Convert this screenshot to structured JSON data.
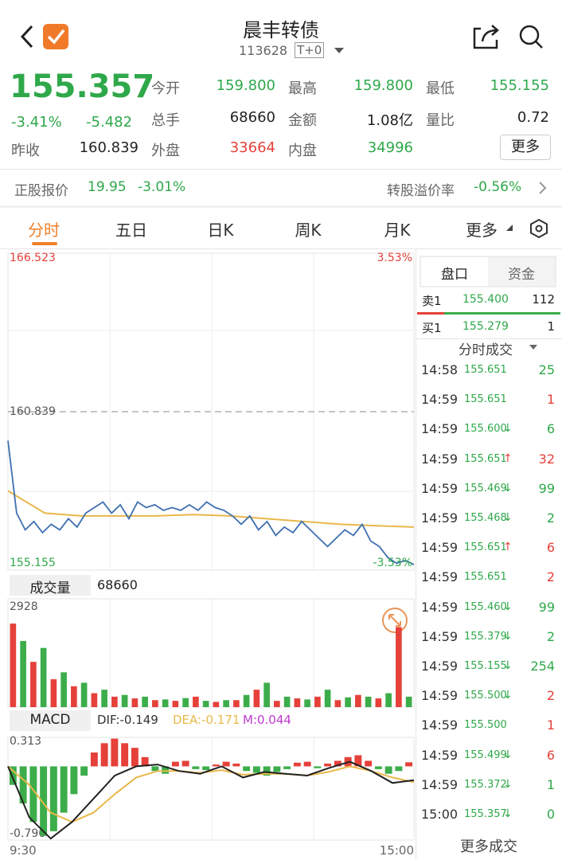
{
  "header": {
    "title": "晨丰转债",
    "code": "113628",
    "tag": "T+0"
  },
  "quote": {
    "price": "155.357",
    "change_pct": "-3.41%",
    "change": "-5.482",
    "prev_close_label": "昨收",
    "prev_close": "160.839",
    "cells": [
      [
        {
          "label": "今开",
          "value": "159.800",
          "color": "#2fa84a"
        },
        {
          "label": "最高",
          "value": "159.800",
          "color": "#2fa84a"
        },
        {
          "label": "最低",
          "value": "155.155",
          "color": "#2fa84a"
        }
      ],
      [
        {
          "label": "总手",
          "value": "68660",
          "color": "#222222"
        },
        {
          "label": "金额",
          "value": "1.08亿",
          "color": "#222222"
        },
        {
          "label": "量比",
          "value": "0.72",
          "color": "#222222"
        }
      ],
      [
        {
          "label": "外盘",
          "value": "33664",
          "color": "#e5413a"
        },
        {
          "label": "内盘",
          "value": "34996",
          "color": "#2fa84a"
        }
      ]
    ],
    "more": "更多"
  },
  "stock_row": {
    "label": "正股报价",
    "price": "19.95",
    "pct": "-3.01%",
    "premium_label": "转股溢价率",
    "premium": "-0.56%"
  },
  "tabs": [
    "分时",
    "五日",
    "日K",
    "周K",
    "月K",
    "更多"
  ],
  "price_chart": {
    "ylim": [
      155.155,
      166.523
    ],
    "ref": 160.839,
    "pct_top": "3.53%",
    "pct_bottom": "-3.53%",
    "line_color": "#3e6fb0",
    "avg_color": "#e8b84a",
    "values": [
      159.8,
      157.2,
      156.6,
      156.9,
      156.5,
      156.8,
      156.6,
      157.0,
      156.7,
      157.2,
      157.4,
      157.6,
      157.2,
      157.5,
      157.0,
      157.6,
      157.4,
      157.5,
      157.3,
      157.4,
      157.3,
      157.5,
      157.3,
      157.6,
      157.4,
      157.3,
      157.1,
      156.8,
      157.1,
      156.6,
      156.9,
      156.4,
      156.7,
      156.5,
      156.9,
      156.6,
      156.3,
      156.0,
      156.3,
      156.6,
      156.4,
      156.8,
      156.2,
      156.0,
      155.6,
      155.4,
      155.5,
      155.357
    ],
    "avg": [
      158.0,
      157.2,
      157.1,
      157.1,
      157.1,
      157.15,
      157.1,
      157.0,
      156.9,
      156.8,
      156.75,
      156.7
    ]
  },
  "volume": {
    "button": "成交量",
    "total": "68660",
    "ylim": [
      0,
      2928
    ],
    "series": [
      {
        "color": "#e5413a",
        "values": [
          2400,
          null,
          1300,
          null,
          800,
          null,
          600,
          null,
          400,
          null,
          300,
          null,
          250,
          null,
          200,
          null,
          180,
          null,
          300,
          null,
          150,
          null,
          200,
          null,
          500,
          null,
          180,
          null,
          250,
          null,
          300,
          null,
          200,
          null,
          350,
          null,
          250,
          null,
          2300,
          null
        ]
      },
      {
        "color": "#3cad4a",
        "values": [
          null,
          1900,
          null,
          1700,
          null,
          1000,
          null,
          700,
          null,
          500,
          null,
          350,
          null,
          300,
          null,
          220,
          null,
          260,
          null,
          180,
          null,
          200,
          null,
          350,
          null,
          700,
          null,
          300,
          null,
          220,
          null,
          500,
          null,
          280,
          null,
          300,
          null,
          400,
          null,
          300
        ]
      }
    ]
  },
  "macd": {
    "button": "MACD",
    "dif": "DIF:-0.149",
    "dea": "DEA:-0.171",
    "m": "M:0.044",
    "ylim": [
      -0.796,
      0.313
    ],
    "bars": [
      -0.2,
      -0.4,
      -0.6,
      -0.75,
      -0.7,
      -0.5,
      -0.3,
      -0.1,
      0.15,
      0.25,
      0.3,
      0.25,
      0.2,
      0.1,
      -0.05,
      -0.08,
      0.05,
      0.06,
      -0.03,
      -0.04,
      0.02,
      0.05,
      0.03,
      -0.05,
      -0.07,
      -0.1,
      -0.06,
      -0.03,
      0.04,
      0.05,
      -0.02,
      0.03,
      0.06,
      0.1,
      0.12,
      0.06,
      -0.03,
      -0.08,
      -0.05,
      0.044
    ],
    "dif_values": [
      0,
      -0.55,
      -0.78,
      -0.6,
      -0.35,
      -0.1,
      0.0,
      0.02,
      -0.05,
      -0.08,
      0.0,
      -0.12,
      -0.06,
      -0.08,
      -0.1,
      -0.02,
      0.05,
      -0.05,
      -0.18,
      -0.149
    ],
    "dea_values": [
      0,
      -0.2,
      -0.5,
      -0.6,
      -0.5,
      -0.3,
      -0.12,
      -0.05,
      -0.05,
      -0.07,
      -0.04,
      -0.09,
      -0.08,
      -0.08,
      -0.1,
      -0.06,
      0.0,
      -0.05,
      -0.12,
      -0.171
    ]
  },
  "x_labels": [
    "9:30",
    "15:00"
  ],
  "side": {
    "tabs": [
      "盘口",
      "资金"
    ],
    "sell": {
      "label": "卖1",
      "price": "155.400",
      "vol": "112"
    },
    "buy": {
      "label": "买1",
      "price": "155.279",
      "vol": "1"
    },
    "trades_title": "分时成交",
    "trades": [
      {
        "time": "14:58",
        "price": "155.651",
        "vol": "25",
        "color": "#2fa84a"
      },
      {
        "time": "14:59",
        "price": "155.651",
        "vol": "1",
        "color": "#e5413a"
      },
      {
        "time": "14:59",
        "price": "155.600",
        "dir": "↓",
        "vol": "6",
        "color": "#2fa84a"
      },
      {
        "time": "14:59",
        "price": "155.651",
        "dir": "↑",
        "vol": "32",
        "color": "#e5413a"
      },
      {
        "time": "14:59",
        "price": "155.469",
        "dir": "↓",
        "vol": "99",
        "color": "#2fa84a"
      },
      {
        "time": "14:59",
        "price": "155.468",
        "dir": "↓",
        "vol": "2",
        "color": "#2fa84a"
      },
      {
        "time": "14:59",
        "price": "155.651",
        "dir": "↑",
        "vol": "6",
        "color": "#e5413a"
      },
      {
        "time": "14:59",
        "price": "155.651",
        "vol": "2",
        "color": "#e5413a"
      },
      {
        "time": "14:59",
        "price": "155.460",
        "dir": "↓",
        "vol": "99",
        "color": "#2fa84a"
      },
      {
        "time": "14:59",
        "price": "155.379",
        "dir": "↓",
        "vol": "2",
        "color": "#2fa84a"
      },
      {
        "time": "14:59",
        "price": "155.155",
        "dir": "↓",
        "vol": "254",
        "color": "#2fa84a"
      },
      {
        "time": "14:59",
        "price": "155.500",
        "dir": "↓",
        "vol": "2",
        "color": "#e5413a"
      },
      {
        "time": "14:59",
        "price": "155.500",
        "vol": "1",
        "color": "#e5413a"
      },
      {
        "time": "14:59",
        "price": "155.499",
        "dir": "↓",
        "vol": "6",
        "color": "#e5413a"
      },
      {
        "time": "14:59",
        "price": "155.372",
        "dir": "↓",
        "vol": "1",
        "color": "#2fa84a"
      },
      {
        "time": "15:00",
        "price": "155.357",
        "dir": "↓",
        "vol": "0",
        "color": "#2fa84a"
      }
    ],
    "more_trades": "更多成交"
  }
}
